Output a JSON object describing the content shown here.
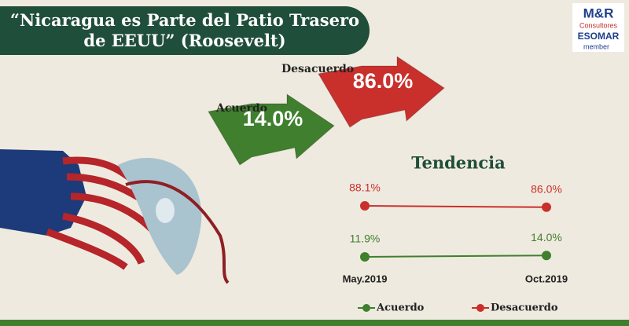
{
  "header": {
    "title": "“Nicaragua es Parte del Patio Trasero de EEUU” (Roosevelt)",
    "logo": [
      "M&R",
      "Consultores",
      "ESOMAR",
      "member"
    ]
  },
  "chart_data": [
    {
      "type": "arrow",
      "categories": [
        "Acuerdo",
        "Desacuerdo"
      ],
      "values": [
        14.0,
        86.0
      ],
      "value_labels": [
        "14.0%",
        "86.0%"
      ],
      "colors": [
        "#3f7f2e",
        "#c9302c"
      ]
    },
    {
      "type": "line",
      "title": "Tendencia",
      "categories": [
        "May.2019",
        "Oct.2019"
      ],
      "series": [
        {
          "name": "Acuerdo",
          "color": "#3f7f2e",
          "values": [
            11.9,
            14.0
          ],
          "value_labels": [
            "11.9%",
            "14.0%"
          ]
        },
        {
          "name": "Desacuerdo",
          "color": "#c9302c",
          "values": [
            88.1,
            86.0
          ],
          "value_labels": [
            "88.1%",
            "86.0%"
          ]
        }
      ]
    }
  ]
}
